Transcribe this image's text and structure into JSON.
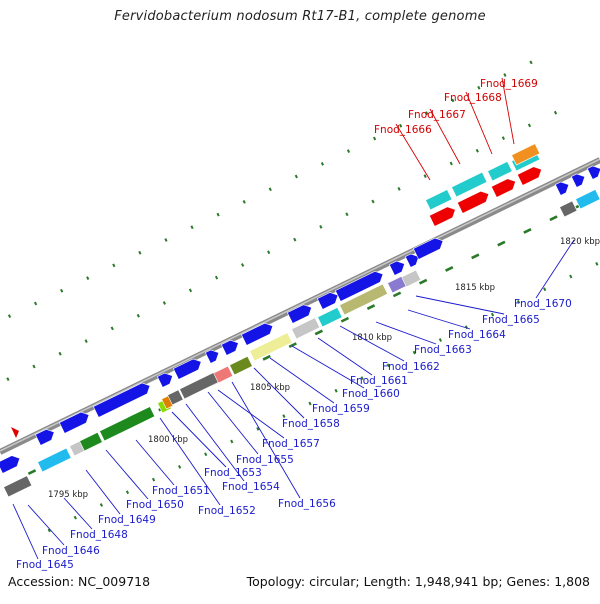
{
  "title": "Fervidobacterium nodosum Rt17-B1, complete genome",
  "accession": "Accession: NC_009718",
  "topology": "Topology: circular; Length: 1,948,941 bp; Genes: 1,808",
  "colors": {
    "backbone": "#8a8a8a",
    "label_default": "#1a1acc",
    "label_selected": "#d40000",
    "gene_blue": "#1414e6",
    "tick": "#2a7a2a"
  },
  "ruler": [
    {
      "label": "1795 kbp"
    },
    {
      "label": "1800 kbp"
    },
    {
      "label": "1805 kbp"
    },
    {
      "label": "1810 kbp"
    },
    {
      "label": "1815 kbp"
    },
    {
      "label": "1820 kbp"
    }
  ],
  "gene_labels": [
    {
      "text": "Fnod_1645",
      "selected": false
    },
    {
      "text": "Fnod_1646",
      "selected": false
    },
    {
      "text": "Fnod_1648",
      "selected": false
    },
    {
      "text": "Fnod_1649",
      "selected": false
    },
    {
      "text": "Fnod_1650",
      "selected": false
    },
    {
      "text": "Fnod_1651",
      "selected": false
    },
    {
      "text": "Fnod_1652",
      "selected": false
    },
    {
      "text": "Fnod_1653",
      "selected": false
    },
    {
      "text": "Fnod_1654",
      "selected": false
    },
    {
      "text": "Fnod_1655",
      "selected": false
    },
    {
      "text": "Fnod_1656",
      "selected": false
    },
    {
      "text": "Fnod_1657",
      "selected": false
    },
    {
      "text": "Fnod_1658",
      "selected": false
    },
    {
      "text": "Fnod_1659",
      "selected": false
    },
    {
      "text": "Fnod_1660",
      "selected": false
    },
    {
      "text": "Fnod_1661",
      "selected": false
    },
    {
      "text": "Fnod_1662",
      "selected": false
    },
    {
      "text": "Fnod_1663",
      "selected": false
    },
    {
      "text": "Fnod_1664",
      "selected": false
    },
    {
      "text": "Fnod_1665",
      "selected": false
    },
    {
      "text": "Fnod_1670",
      "selected": false
    },
    {
      "text": "Fnod_1666",
      "selected": true
    },
    {
      "text": "Fnod_1667",
      "selected": true
    },
    {
      "text": "Fnod_1668",
      "selected": true
    },
    {
      "text": "Fnod_1669",
      "selected": true
    }
  ]
}
